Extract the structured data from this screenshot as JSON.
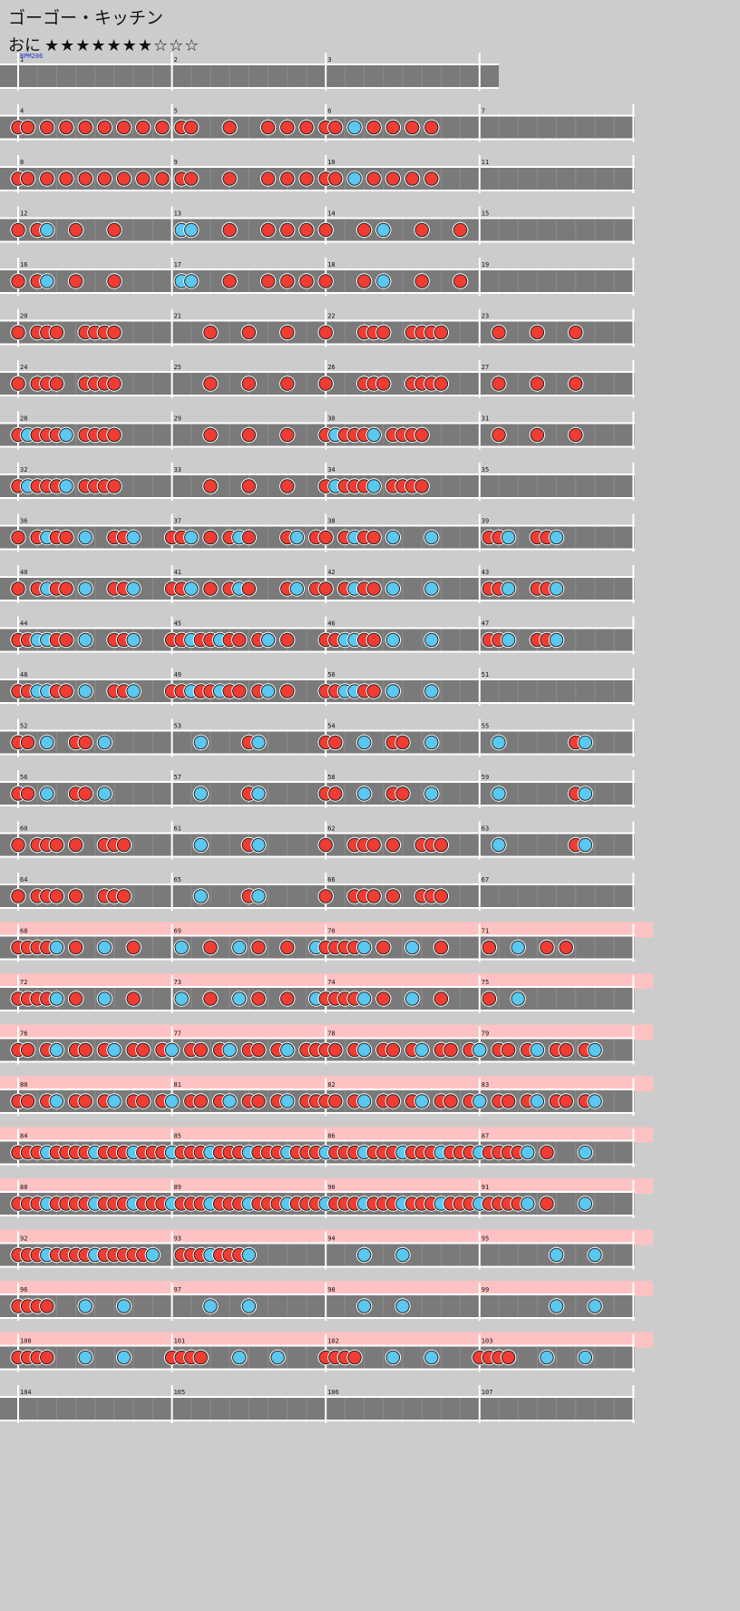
{
  "song_title": "ゴーゴー・キッチン",
  "course_label": "おに",
  "stars_filled": 7,
  "stars_total": 10,
  "bpm_label": "BPM206",
  "colors": {
    "background": "#cccccc",
    "lane": "#7a7a7a",
    "gogo_band": "#ffc2c2",
    "don": "#f03c32",
    "ka": "#5ac8f0"
  },
  "chart_data": {
    "type": "taiko-score",
    "measures_per_row": 4,
    "total_measures": 107,
    "gogo_start_measure": 68,
    "gogo_end_measure": 103,
    "notes_per_measure": 16,
    "rows": [
      {
        "measures": [
          1,
          2,
          3
        ],
        "notes": [
          ""
        ]
      },
      {
        "measures": [
          4,
          5,
          6,
          7
        ],
        "notes": [
          "dd-d-d-d-d-d-d-d-e-e-e-d-d-d-d-dd-d-k-d-d-d-d"
        ]
      },
      {
        "measures": [
          8,
          9,
          10,
          11
        ],
        "notes": []
      },
      {
        "measures": [
          12,
          13,
          14,
          15
        ],
        "notes": []
      },
      {
        "measures": [
          16,
          17,
          18,
          19
        ],
        "notes": []
      },
      {
        "measures": [
          20,
          21,
          22,
          23
        ],
        "notes": []
      },
      {
        "measures": [
          24,
          25,
          26,
          27
        ],
        "notes": []
      },
      {
        "measures": [
          28,
          29,
          30,
          31
        ],
        "notes": []
      },
      {
        "measures": [
          32,
          33,
          34,
          35
        ],
        "notes": []
      },
      {
        "measures": [
          36,
          37,
          38,
          39
        ],
        "notes": []
      },
      {
        "measures": [
          40,
          41,
          42,
          43
        ],
        "notes": []
      },
      {
        "measures": [
          44,
          45,
          46,
          47
        ],
        "notes": []
      },
      {
        "measures": [
          48,
          49,
          50,
          51
        ],
        "notes": []
      },
      {
        "measures": [
          52,
          53,
          54,
          55
        ],
        "notes": []
      },
      {
        "measures": [
          56,
          57,
          58,
          59
        ],
        "notes": []
      },
      {
        "measures": [
          60,
          61,
          62,
          63
        ],
        "notes": []
      },
      {
        "measures": [
          64,
          65,
          66,
          67
        ],
        "notes": []
      },
      {
        "measures": [
          68,
          69,
          70,
          71
        ],
        "notes": []
      },
      {
        "measures": [
          72,
          73,
          74,
          75
        ],
        "notes": []
      },
      {
        "measures": [
          76,
          77,
          78,
          79
        ],
        "notes": []
      },
      {
        "measures": [
          80,
          81,
          82,
          83
        ],
        "notes": []
      },
      {
        "measures": [
          84,
          85,
          86,
          87
        ],
        "notes": []
      },
      {
        "measures": [
          88,
          89,
          90,
          91
        ],
        "notes": []
      },
      {
        "measures": [
          92,
          93,
          94,
          95
        ],
        "notes": []
      },
      {
        "measures": [
          96,
          97,
          98,
          99
        ],
        "notes": []
      },
      {
        "measures": [
          100,
          101,
          102,
          103
        ],
        "notes": []
      },
      {
        "measures": [
          104,
          105,
          106,
          107
        ],
        "notes": []
      }
    ]
  }
}
